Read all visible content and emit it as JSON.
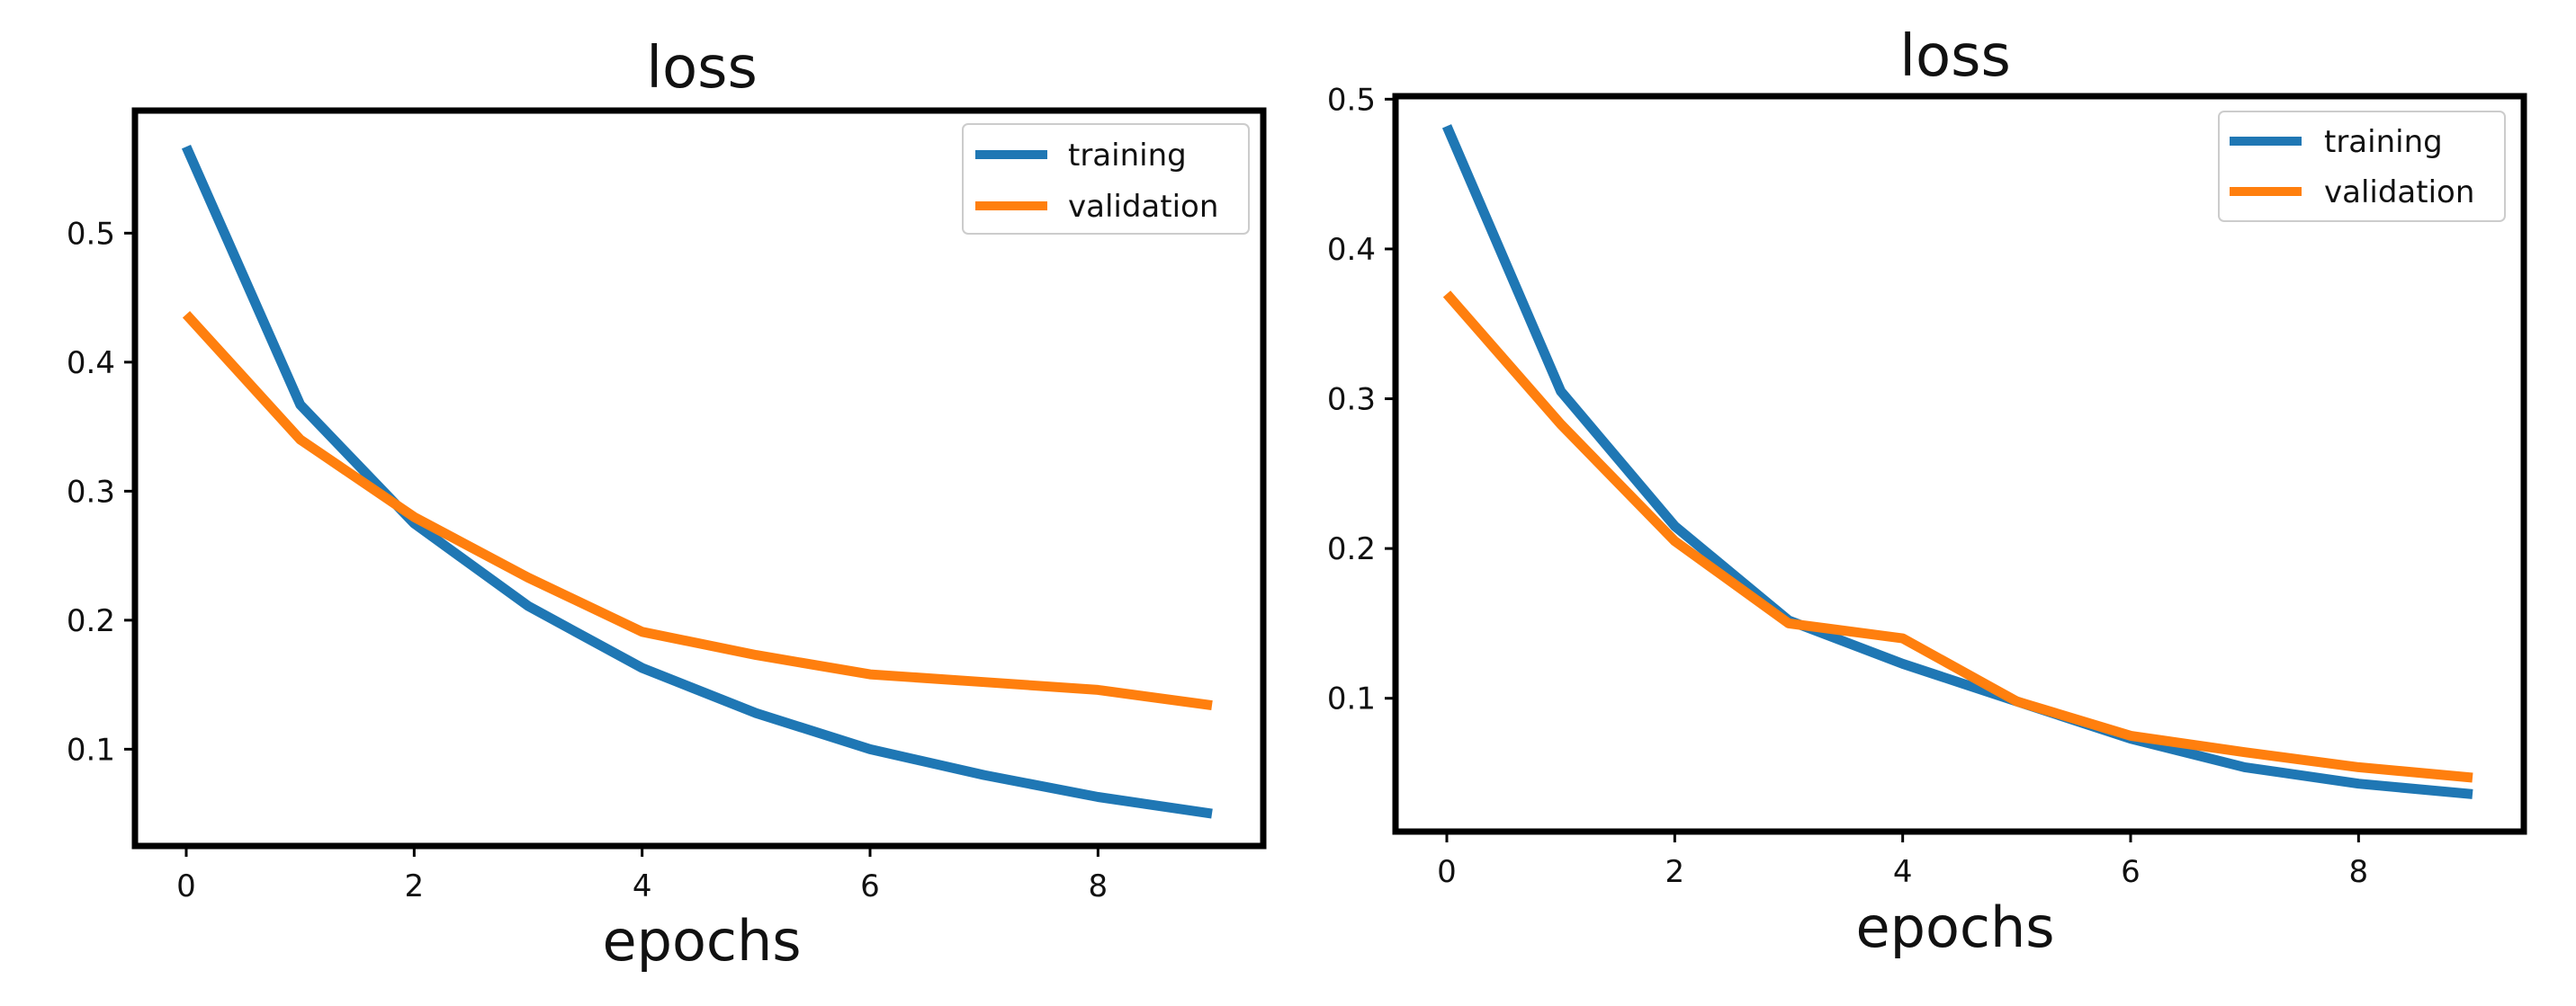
{
  "chart_data": [
    {
      "type": "line",
      "title": "loss",
      "xlabel": "epochs",
      "ylabel": "",
      "xlim": [
        -0.45,
        9.45
      ],
      "ylim": [
        0.025,
        0.595
      ],
      "xticks": [
        0,
        2,
        4,
        6,
        8
      ],
      "yticks": [
        0.1,
        0.2,
        0.3,
        0.4,
        0.5
      ],
      "x": [
        0,
        1,
        2,
        3,
        4,
        5,
        6,
        7,
        8,
        9
      ],
      "grid": false,
      "legend_position": "top-right",
      "series": [
        {
          "name": "training",
          "color": "#1f77b4",
          "values": [
            0.567,
            0.367,
            0.275,
            0.211,
            0.163,
            0.128,
            0.1,
            0.08,
            0.063,
            0.05
          ]
        },
        {
          "name": "validation",
          "color": "#ff7f0e",
          "values": [
            0.437,
            0.34,
            0.28,
            0.233,
            0.191,
            0.173,
            0.158,
            0.152,
            0.146,
            0.134
          ]
        }
      ]
    },
    {
      "type": "line",
      "title": "loss",
      "xlabel": "epochs",
      "ylabel": "",
      "xlim": [
        -0.45,
        9.45
      ],
      "ylim": [
        0.011,
        0.502
      ],
      "xticks": [
        0,
        2,
        4,
        6,
        8
      ],
      "yticks": [
        0.1,
        0.2,
        0.3,
        0.4,
        0.5
      ],
      "x": [
        0,
        1,
        2,
        3,
        4,
        5,
        6,
        7,
        8,
        9
      ],
      "grid": false,
      "legend_position": "top-right",
      "series": [
        {
          "name": "training",
          "color": "#1f77b4",
          "values": [
            0.482,
            0.305,
            0.215,
            0.152,
            0.123,
            0.098,
            0.073,
            0.054,
            0.043,
            0.036
          ]
        },
        {
          "name": "validation",
          "color": "#ff7f0e",
          "values": [
            0.37,
            0.283,
            0.205,
            0.15,
            0.14,
            0.098,
            0.075,
            0.064,
            0.054,
            0.047
          ]
        }
      ]
    }
  ]
}
